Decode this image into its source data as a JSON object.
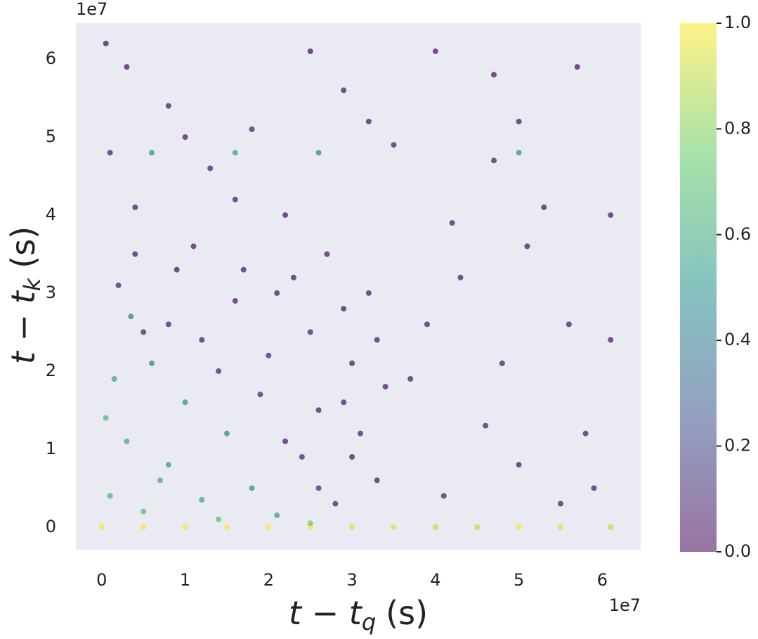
{
  "chart_data": {
    "type": "scatter",
    "x_offset_label": "1e7",
    "y_offset_label": "1e7",
    "x_label": {
      "main": "t − t",
      "sub": "q",
      "unit": "(s)"
    },
    "y_label": {
      "main": "t − t",
      "sub": "k",
      "unit": "(s)"
    },
    "xlim": [
      -0.31,
      6.46
    ],
    "ylim": [
      -0.29,
      6.46
    ],
    "xticks": [
      0,
      1,
      2,
      3,
      4,
      5,
      6
    ],
    "yticks": [
      0,
      1,
      2,
      3,
      4,
      5,
      6
    ],
    "clim": [
      0,
      1
    ],
    "cticks": [
      {
        "value": 0,
        "label": "0.0"
      },
      0.2,
      0.4,
      0.6,
      0.8,
      {
        "value": 1,
        "label": "1.0"
      }
    ],
    "colormap": [
      "#440154",
      "#3b528b",
      "#21918c",
      "#5ec962",
      "#fde725"
    ],
    "background": "#eaeaf2",
    "grid": false,
    "x": [
      0,
      0.5,
      1,
      1.5,
      2,
      2.5,
      3,
      3.5,
      4,
      4.5,
      5,
      5.5,
      6.1,
      0.1,
      0.3,
      0.15,
      0.5,
      0.8,
      1.2,
      1.5,
      0.6,
      1.0,
      1.8,
      0.35,
      2.1,
      0.05,
      0.7,
      1.4,
      2.5,
      0.2,
      0.5,
      0.9,
      1.2,
      1.6,
      2.0,
      2.3,
      2.6,
      2.9,
      3.1,
      3.3,
      2.4,
      2.8,
      1.9,
      2.2,
      3.0,
      0.4,
      1.1,
      2.7,
      3.2,
      2.5,
      1.4,
      0.8,
      3.4,
      2.1,
      1.7,
      2.9,
      3.3,
      2.6,
      3.0,
      0.1,
      0.4,
      0.8,
      1.3,
      1.8,
      2.2,
      2.5,
      2.9,
      3.5,
      4.0,
      4.2,
      4.7,
      4.7,
      5.0,
      5.3,
      5.7,
      6.1,
      6.1,
      5.8,
      5.5,
      5.0,
      4.8,
      4.6,
      4.1,
      3.9,
      3.7,
      4.3,
      5.1,
      5.6,
      5.9,
      0.3,
      1.0,
      1.6,
      3.2,
      0.05,
      0.6,
      1.6,
      5.0,
      2.6
    ],
    "y": [
      0,
      0,
      0,
      0,
      0,
      0,
      0,
      0,
      0,
      0,
      0,
      0,
      0,
      0.4,
      1.1,
      1.9,
      0.2,
      0.8,
      0.35,
      1.2,
      2.1,
      1.6,
      0.5,
      2.7,
      0.15,
      1.4,
      0.6,
      0.1,
      0.05,
      3.1,
      2.5,
      3.3,
      2.4,
      2.9,
      2.2,
      3.2,
      1.5,
      2.8,
      1.2,
      0.6,
      0.9,
      0.3,
      1.7,
      1.1,
      2.1,
      3.5,
      3.6,
      3.5,
      3.0,
      2.5,
      2.0,
      2.6,
      1.8,
      3.0,
      3.3,
      1.6,
      2.4,
      0.5,
      0.9,
      4.8,
      4.1,
      5.4,
      4.6,
      5.1,
      4.0,
      6.1,
      5.6,
      4.9,
      6.1,
      3.9,
      5.8,
      4.7,
      5.2,
      4.1,
      5.9,
      4.0,
      2.4,
      1.2,
      0.3,
      0.8,
      2.1,
      1.3,
      0.4,
      2.6,
      1.9,
      3.2,
      3.6,
      2.6,
      0.5,
      5.9,
      5.0,
      4.2,
      5.2,
      6.2,
      4.8,
      4.8,
      4.8,
      4.8
    ],
    "c": [
      1,
      1,
      1,
      1,
      1,
      1,
      0.95,
      0.95,
      0.9,
      0.9,
      1,
      0.95,
      0.9,
      0.62,
      0.6,
      0.55,
      0.68,
      0.52,
      0.58,
      0.45,
      0.42,
      0.5,
      0.47,
      0.38,
      0.55,
      0.65,
      0.6,
      0.7,
      0.75,
      0.05,
      0.06,
      0.03,
      0.05,
      0.04,
      0.07,
      0.03,
      0.05,
      0.04,
      0.06,
      0.05,
      0.08,
      0.05,
      0.06,
      0.04,
      0.03,
      0.05,
      0.04,
      0.03,
      0.05,
      0.06,
      0.07,
      0.05,
      0.04,
      0.03,
      0.05,
      0.06,
      0.04,
      0.08,
      0.05,
      0.05,
      0.04,
      0.03,
      0.05,
      0.04,
      0.03,
      0.02,
      0.04,
      0.05,
      0.03,
      0.04,
      0.03,
      0.05,
      0.04,
      0.03,
      0.02,
      0.04,
      0.03,
      0.05,
      0.04,
      0.03,
      0.05,
      0.04,
      0.06,
      0.03,
      0.04,
      0.05,
      0.03,
      0.04,
      0.05,
      0.03,
      0.04,
      0.05,
      0.03,
      0.02,
      0.5,
      0.55,
      0.5,
      0.45
    ]
  }
}
